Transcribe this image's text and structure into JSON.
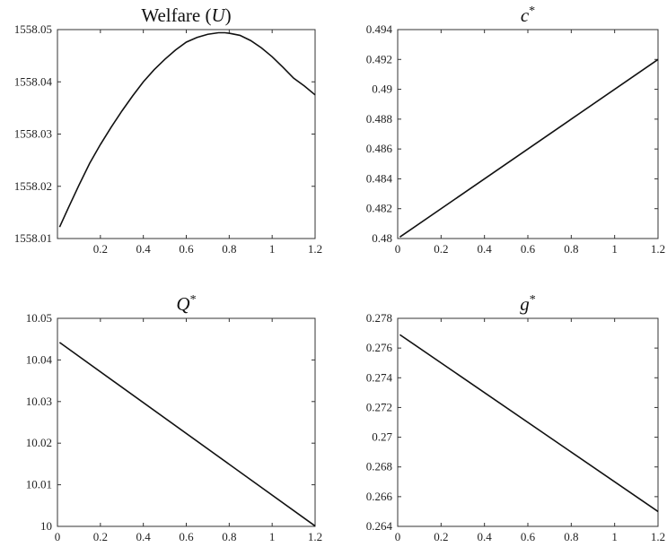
{
  "chart_data": [
    {
      "type": "line",
      "title": "Welfare (U)",
      "title_parts": {
        "text": "Welfare (",
        "var": "U",
        "sup": "",
        "close": ")"
      },
      "xlim": [
        0,
        1.2
      ],
      "ylim": [
        1558.01,
        1558.05
      ],
      "x_ticks": [
        0.2,
        0.4,
        0.6,
        0.8,
        1,
        1.2
      ],
      "x_tick_labels": [
        "0.2",
        "0.4",
        "0.6",
        "0.8",
        "1",
        "1.2"
      ],
      "y_ticks": [
        1558.01,
        1558.02,
        1558.03,
        1558.04,
        1558.05
      ],
      "y_tick_labels": [
        "1558.01",
        "1558.02",
        "1558.03",
        "1558.04",
        "1558.05"
      ],
      "series": [
        {
          "x": [
            0.01,
            0.05,
            0.1,
            0.15,
            0.2,
            0.25,
            0.3,
            0.35,
            0.4,
            0.45,
            0.5,
            0.55,
            0.6,
            0.65,
            0.7,
            0.75,
            0.78,
            0.8,
            0.85,
            0.9,
            0.95,
            1.0,
            1.05,
            1.1,
            1.15,
            1.2
          ],
          "y": [
            1558.0122,
            1558.0158,
            1558.0202,
            1558.0244,
            1558.028,
            1558.0313,
            1558.0344,
            1558.0373,
            1558.04,
            1558.0423,
            1558.0443,
            1558.0461,
            1558.0476,
            1558.0485,
            1558.0491,
            1558.0494,
            1558.0494,
            1558.0493,
            1558.0489,
            1558.0479,
            1558.0465,
            1558.0448,
            1558.0428,
            1558.0407,
            1558.0392,
            1558.0375
          ]
        }
      ]
    },
    {
      "type": "line",
      "title": "c*",
      "title_parts": {
        "text": "",
        "var": "c",
        "sup": "*",
        "close": ""
      },
      "xlim": [
        0,
        1.2
      ],
      "ylim": [
        0.48,
        0.494
      ],
      "x_ticks": [
        0,
        0.2,
        0.4,
        0.6,
        0.8,
        1,
        1.2
      ],
      "x_tick_labels": [
        "0",
        "0.2",
        "0.4",
        "0.6",
        "0.8",
        "1",
        "1.2"
      ],
      "y_ticks": [
        0.48,
        0.482,
        0.484,
        0.486,
        0.488,
        0.49,
        0.492,
        0.494
      ],
      "y_tick_labels": [
        "0.48",
        "0.482",
        "0.484",
        "0.486",
        "0.488",
        "0.49",
        "0.492",
        "0.494"
      ],
      "series": [
        {
          "x": [
            0.01,
            1.2
          ],
          "y": [
            0.4801,
            0.492
          ]
        }
      ]
    },
    {
      "type": "line",
      "title": "Q*",
      "title_parts": {
        "text": "",
        "var": "Q",
        "sup": "*",
        "close": ""
      },
      "xlim": [
        0,
        1.2
      ],
      "ylim": [
        10,
        10.05
      ],
      "x_ticks": [
        0,
        0.2,
        0.4,
        0.6,
        0.8,
        1,
        1.2
      ],
      "x_tick_labels": [
        "0",
        "0.2",
        "0.4",
        "0.6",
        "0.8",
        "1",
        "1.2"
      ],
      "y_ticks": [
        10,
        10.01,
        10.02,
        10.03,
        10.04,
        10.05
      ],
      "y_tick_labels": [
        "10",
        "10.01",
        "10.02",
        "10.03",
        "10.04",
        "10.05"
      ],
      "series": [
        {
          "x": [
            0.01,
            1.2
          ],
          "y": [
            10.0442,
            10.0001
          ]
        }
      ]
    },
    {
      "type": "line",
      "title": "g*",
      "title_parts": {
        "text": "",
        "var": "g",
        "sup": "*",
        "close": ""
      },
      "xlim": [
        0,
        1.2
      ],
      "ylim": [
        0.264,
        0.278
      ],
      "x_ticks": [
        0,
        0.2,
        0.4,
        0.6,
        0.8,
        1,
        1.2
      ],
      "x_tick_labels": [
        "0",
        "0.2",
        "0.4",
        "0.6",
        "0.8",
        "1",
        "1.2"
      ],
      "y_ticks": [
        0.264,
        0.266,
        0.268,
        0.27,
        0.272,
        0.274,
        0.276,
        0.278
      ],
      "y_tick_labels": [
        "0.264",
        "0.266",
        "0.268",
        "0.27",
        "0.272",
        "0.274",
        "0.276",
        "0.278"
      ],
      "series": [
        {
          "x": [
            0.01,
            1.2
          ],
          "y": [
            0.2769,
            0.265
          ]
        }
      ]
    }
  ]
}
